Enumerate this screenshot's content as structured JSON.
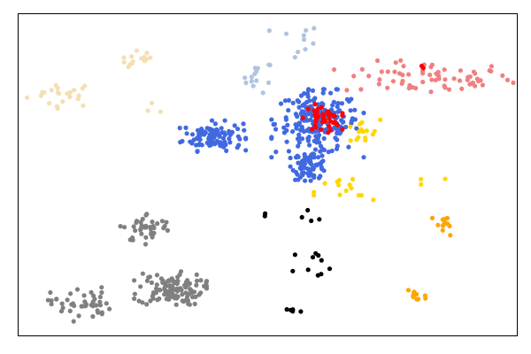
{
  "chart_data": {
    "type": "scatter",
    "title": "",
    "xlabel": "",
    "ylabel": "",
    "xlim": [
      0,
      100
    ],
    "ylim": [
      0,
      100
    ],
    "axes_ticks_visible": false,
    "grid": false,
    "legend": "none",
    "clusters": [
      {
        "color": "#F5DEB3",
        "center": [
          9.0,
          75.0
        ],
        "spread": [
          3.5,
          2.0
        ],
        "n": 22
      },
      {
        "color": "#F5DEB3",
        "center": [
          24.5,
          85.5
        ],
        "spread": [
          2.0,
          1.5
        ],
        "n": 14
      },
      {
        "color": "#F5DEB3",
        "center": [
          28.0,
          70.0
        ],
        "spread": [
          1.0,
          1.5
        ],
        "n": 3
      },
      {
        "color": "#B0C4DE",
        "center": [
          48.0,
          80.5
        ],
        "spread": [
          1.5,
          2.5
        ],
        "n": 14
      },
      {
        "color": "#B0C4DE",
        "center": [
          55.5,
          91.0
        ],
        "spread": [
          2.5,
          3.0
        ],
        "n": 10
      },
      {
        "color": "#F08080",
        "center": [
          82.0,
          80.0
        ],
        "spread": [
          8.5,
          2.5
        ],
        "n": 70
      },
      {
        "color": "#4169E1",
        "center": [
          39.0,
          62.0
        ],
        "spread": [
          3.0,
          2.2
        ],
        "n": 110
      },
      {
        "color": "#4169E1",
        "center": [
          60.0,
          66.0
        ],
        "spread": [
          4.2,
          4.8
        ],
        "n": 210
      },
      {
        "color": "#4169E1",
        "center": [
          58.5,
          53.0
        ],
        "spread": [
          1.8,
          2.2
        ],
        "n": 70
      },
      {
        "color": "#FF0000",
        "center": [
          61.0,
          67.5
        ],
        "spread": [
          1.8,
          2.0
        ],
        "n": 45
      },
      {
        "color": "#FF0000",
        "center": [
          81.0,
          83.5
        ],
        "spread": [
          0.6,
          0.6
        ],
        "n": 2
      },
      {
        "color": "#FFD700",
        "center": [
          68.5,
          63.0
        ],
        "spread": [
          2.0,
          2.0
        ],
        "n": 15
      },
      {
        "color": "#FFD700",
        "center": [
          65.5,
          44.5
        ],
        "spread": [
          3.0,
          2.5
        ],
        "n": 14
      },
      {
        "color": "#FFD700",
        "center": [
          82.0,
          47.0
        ],
        "spread": [
          2.2,
          2.0
        ],
        "n": 3
      },
      {
        "color": "#FFA500",
        "center": [
          85.5,
          34.5
        ],
        "spread": [
          1.5,
          1.8
        ],
        "n": 12
      },
      {
        "color": "#FFA500",
        "center": [
          79.5,
          12.5
        ],
        "spread": [
          1.2,
          2.0
        ],
        "n": 10
      },
      {
        "color": "#000000",
        "center": [
          55.5,
          37.0
        ],
        "spread": [
          6.0,
          1.5
        ],
        "n": 6
      },
      {
        "color": "#000000",
        "center": [
          61.0,
          22.5
        ],
        "spread": [
          3.5,
          2.5
        ],
        "n": 10
      },
      {
        "color": "#000000",
        "center": [
          54.5,
          8.0
        ],
        "spread": [
          1.0,
          0.7
        ],
        "n": 5
      },
      {
        "color": "#808080",
        "center": [
          26.0,
          33.5
        ],
        "spread": [
          2.5,
          2.3
        ],
        "n": 40
      },
      {
        "color": "#808080",
        "center": [
          30.5,
          14.5
        ],
        "spread": [
          3.3,
          2.5
        ],
        "n": 115
      },
      {
        "color": "#808080",
        "center": [
          12.5,
          10.0
        ],
        "spread": [
          3.0,
          2.5
        ],
        "n": 45
      }
    ]
  }
}
